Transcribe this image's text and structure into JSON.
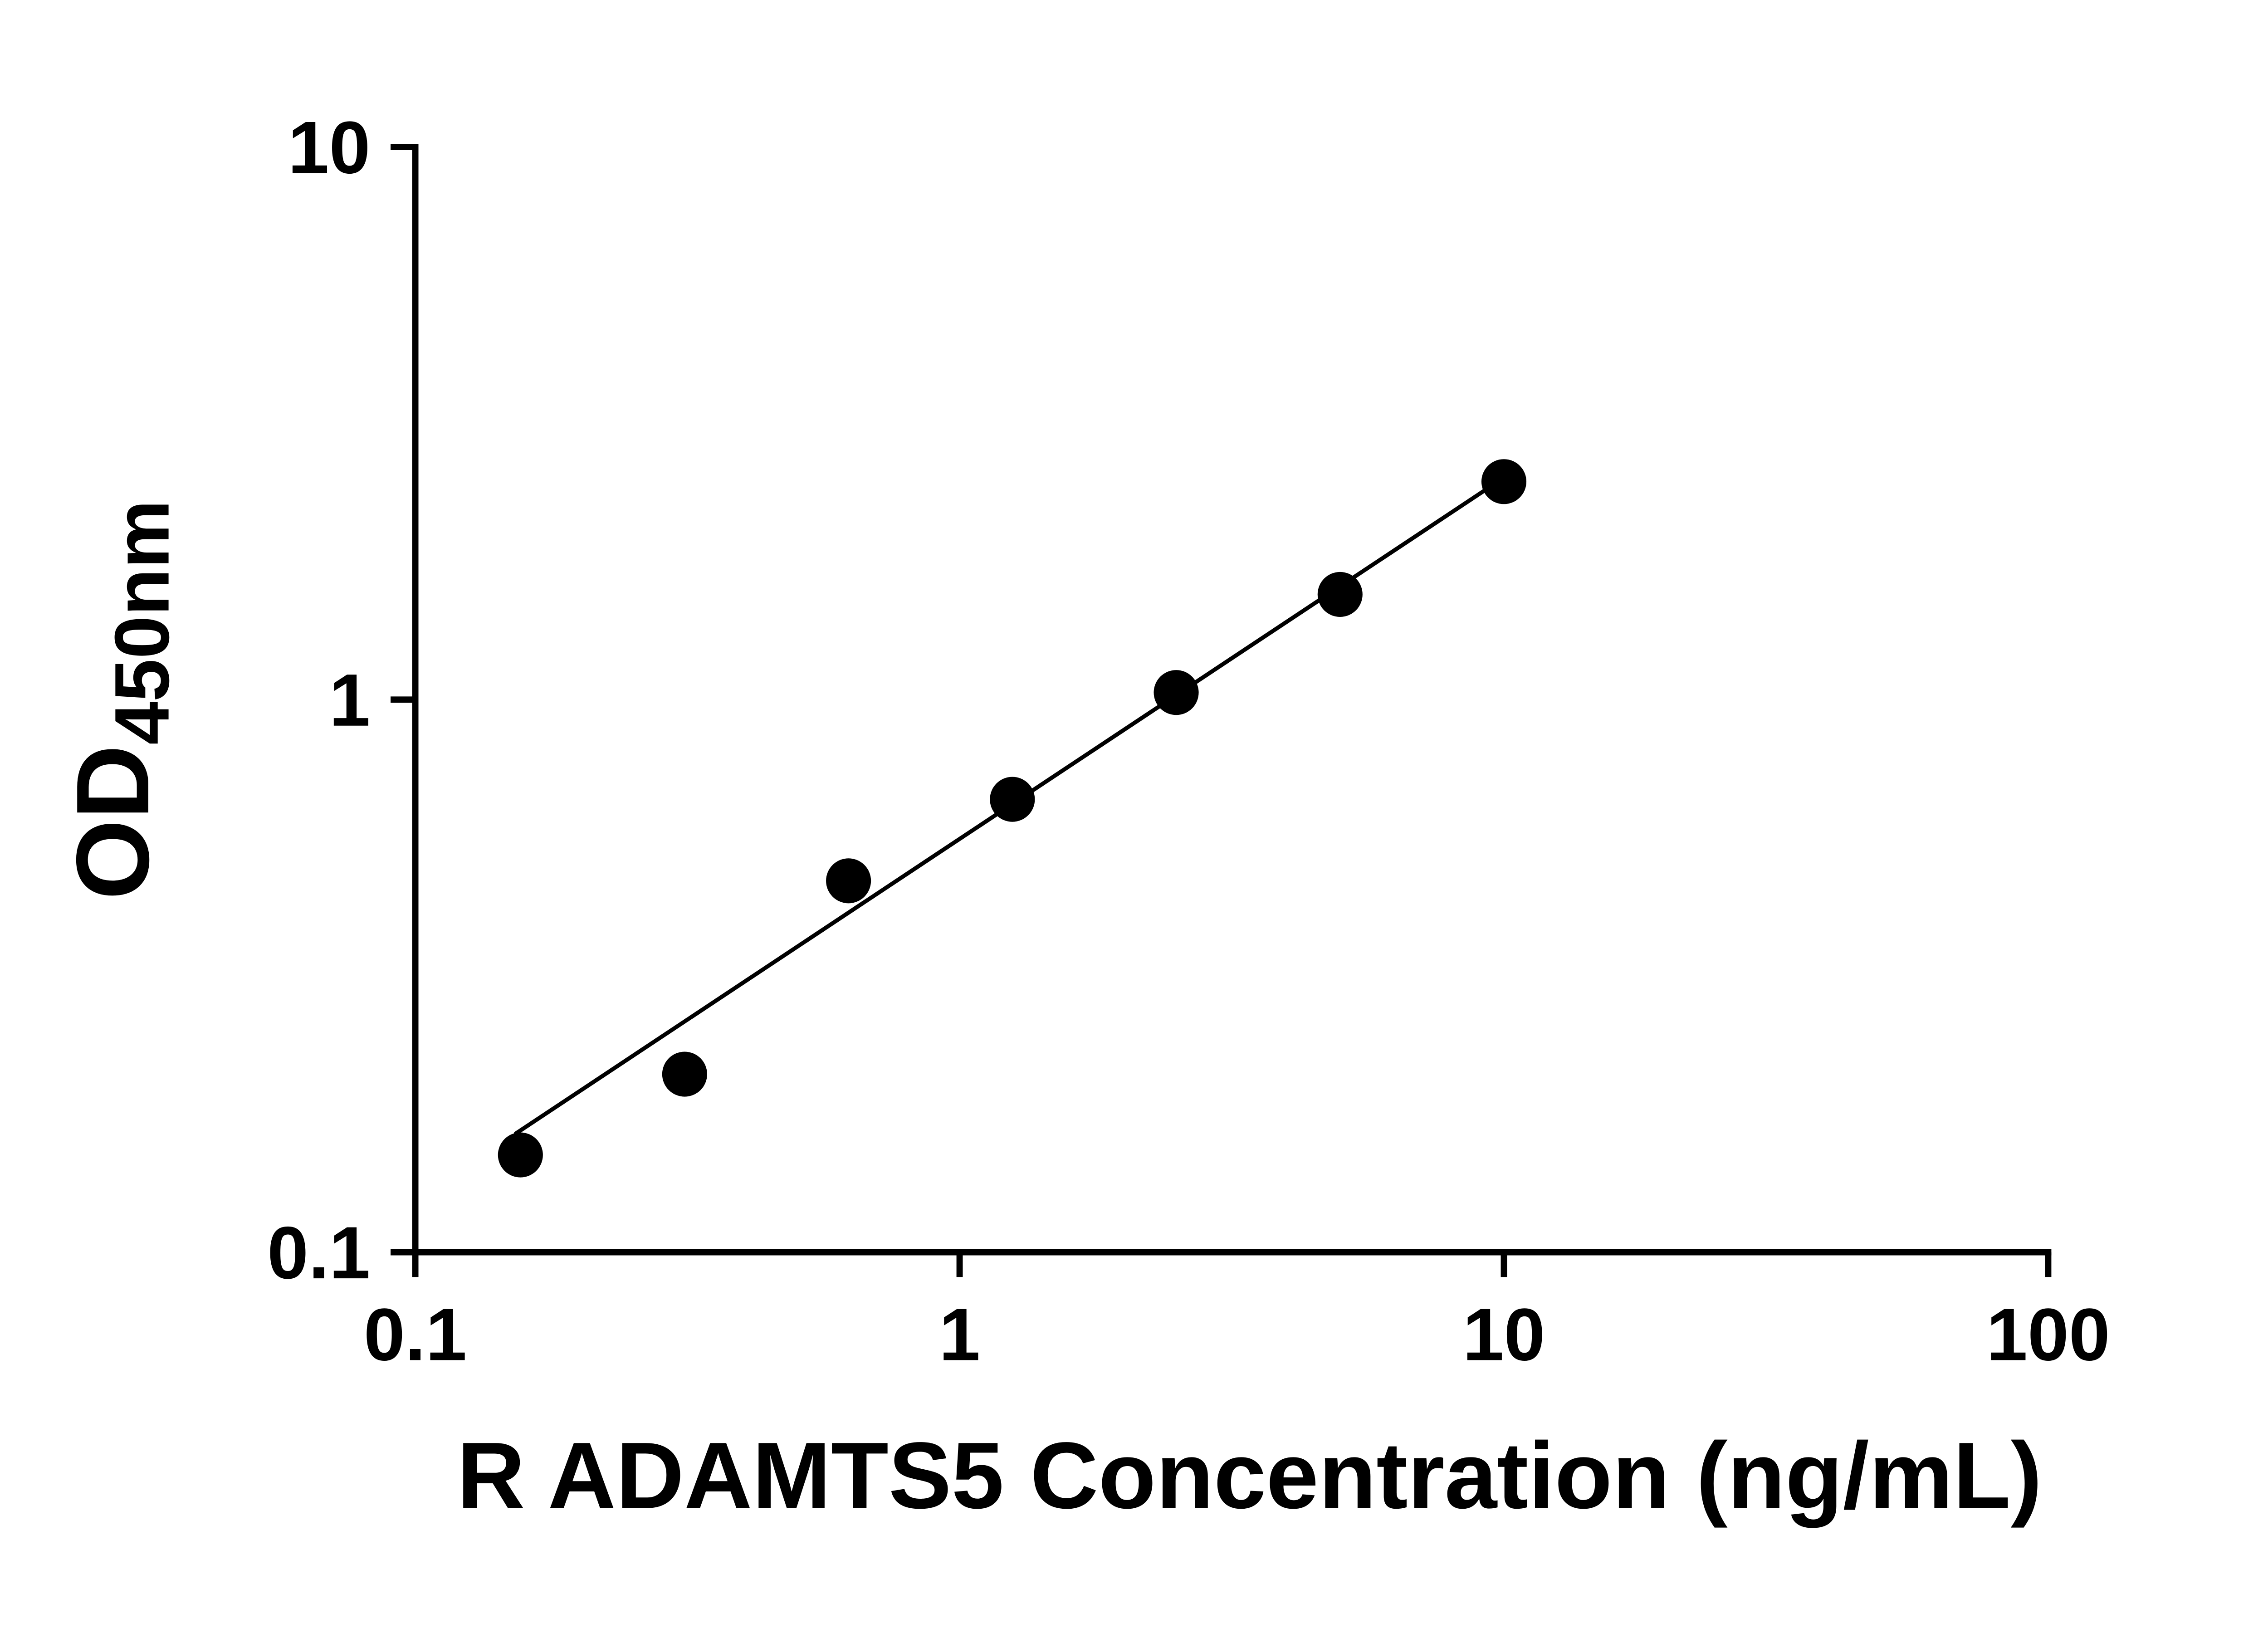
{
  "chart_data": {
    "type": "scatter",
    "title": "",
    "xlabel": "R ADAMTS5 Concentration (ng/mL)",
    "ylabel": "OD450nm",
    "ylabel_main": "OD",
    "ylabel_sub": "450nm",
    "x_scale": "log",
    "y_scale": "log",
    "xlim": [
      0.1,
      100
    ],
    "ylim": [
      0.1,
      10
    ],
    "grid": false,
    "legend_position": "none",
    "x_ticks": [
      {
        "value": 0.1,
        "label": "0.1"
      },
      {
        "value": 1,
        "label": "1"
      },
      {
        "value": 10,
        "label": "10"
      },
      {
        "value": 100,
        "label": "100"
      }
    ],
    "y_ticks": [
      {
        "value": 0.1,
        "label": "0.1"
      },
      {
        "value": 1,
        "label": "1"
      },
      {
        "value": 10,
        "label": "10"
      }
    ],
    "points": [
      {
        "x": 0.156,
        "y": 0.15
      },
      {
        "x": 0.3125,
        "y": 0.21
      },
      {
        "x": 0.625,
        "y": 0.47
      },
      {
        "x": 1.25,
        "y": 0.66
      },
      {
        "x": 2.5,
        "y": 1.03
      },
      {
        "x": 5,
        "y": 1.55
      },
      {
        "x": 10,
        "y": 2.48
      }
    ],
    "trend_line": {
      "x1": 0.153,
      "y1": 0.164,
      "x2": 10.05,
      "y2": 2.53
    },
    "point_color": "#000000",
    "line_color": "#000000",
    "axis_color": "#000000",
    "background": "#ffffff"
  }
}
